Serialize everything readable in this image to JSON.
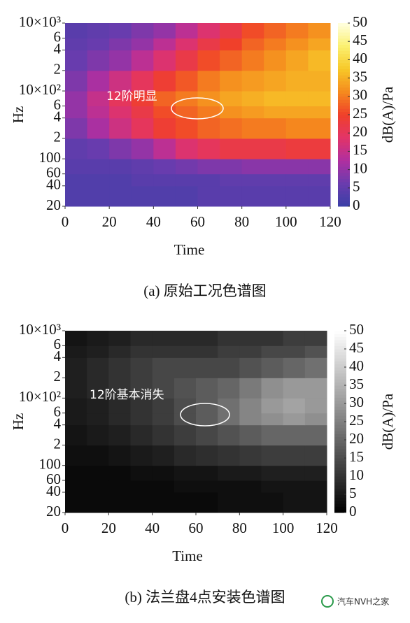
{
  "chart_data": [
    {
      "type": "heatmap",
      "caption": "(a) 原始工况色谱图",
      "annotation": "12阶明显",
      "xlabel": "Time",
      "ylabel": "Hz",
      "colorbar_label": "dB(A)/Pa",
      "xlim": [
        0,
        120
      ],
      "xticks": [
        0,
        20,
        40,
        60,
        80,
        100,
        120
      ],
      "ylim": [
        20,
        10000
      ],
      "y_log": true,
      "yticks": [
        20,
        40,
        60,
        100,
        {
          "value": 200,
          "label": "2"
        },
        {
          "value": 400,
          "label": "4"
        },
        {
          "value": 600,
          "label": "6"
        },
        {
          "value": 1000,
          "label": "10×10²"
        },
        {
          "value": 2000,
          "label": "2"
        },
        {
          "value": 4000,
          "label": "4"
        },
        {
          "value": 6000,
          "label": "6"
        },
        {
          "value": 10000,
          "label": "10×10³"
        }
      ],
      "zlim": [
        0,
        50
      ],
      "zticks": [
        0,
        5,
        10,
        15,
        20,
        25,
        30,
        35,
        40,
        45,
        50
      ],
      "colormap": [
        "#3a3fa6",
        "#6a3cae",
        "#b02fa0",
        "#e23468",
        "#f0402a",
        "#f58a1e",
        "#f7c828",
        "#fbf070",
        "#ffffe0"
      ],
      "x_bins": [
        0,
        10,
        20,
        30,
        40,
        50,
        60,
        70,
        80,
        90,
        100,
        110,
        120
      ],
      "y_bins": [
        20,
        40,
        60,
        100,
        200,
        400,
        600,
        1000,
        2000,
        4000,
        6000,
        10000
      ],
      "z": [
        [
          3,
          3,
          3,
          3,
          3,
          3,
          4,
          4,
          4,
          4,
          4,
          4
        ],
        [
          3,
          3,
          3,
          4,
          4,
          4,
          4,
          5,
          5,
          5,
          5,
          5
        ],
        [
          4,
          4,
          4,
          5,
          6,
          7,
          8,
          8,
          9,
          9,
          9,
          9
        ],
        [
          5,
          6,
          8,
          10,
          14,
          18,
          20,
          22,
          22,
          22,
          23,
          23
        ],
        [
          8,
          12,
          16,
          20,
          24,
          26,
          28,
          29,
          30,
          30,
          31,
          31
        ],
        [
          10,
          14,
          18,
          22,
          26,
          28,
          30,
          32,
          33,
          34,
          34,
          34
        ],
        [
          10,
          15,
          20,
          24,
          28,
          30,
          32,
          34,
          35,
          36,
          36,
          36
        ],
        [
          8,
          12,
          16,
          20,
          24,
          27,
          30,
          32,
          33,
          34,
          35,
          35
        ],
        [
          6,
          8,
          10,
          14,
          18,
          22,
          26,
          28,
          30,
          32,
          34,
          36
        ],
        [
          5,
          6,
          8,
          10,
          14,
          18,
          22,
          25,
          28,
          30,
          32,
          34
        ],
        [
          4,
          5,
          6,
          8,
          10,
          14,
          18,
          22,
          26,
          28,
          30,
          32
        ]
      ]
    },
    {
      "type": "heatmap",
      "caption": "(b) 法兰盘4点安装色谱图",
      "annotation": "12阶基本消失",
      "xlabel": "Time",
      "ylabel": "Hz",
      "colorbar_label": "dB(A)/Pa",
      "xlim": [
        0,
        120
      ],
      "xticks": [
        0,
        20,
        40,
        60,
        80,
        100,
        120
      ],
      "ylim": [
        20,
        10000
      ],
      "y_log": true,
      "yticks": [
        20,
        40,
        60,
        100,
        {
          "value": 200,
          "label": "2"
        },
        {
          "value": 400,
          "label": "4"
        },
        {
          "value": 600,
          "label": "6"
        },
        {
          "value": 1000,
          "label": "10×10²"
        },
        {
          "value": 2000,
          "label": "2"
        },
        {
          "value": 4000,
          "label": "4"
        },
        {
          "value": 6000,
          "label": "6"
        },
        {
          "value": 10000,
          "label": "10×10³"
        }
      ],
      "zlim": [
        0,
        50
      ],
      "zticks": [
        0,
        5,
        10,
        15,
        20,
        25,
        30,
        35,
        40,
        45,
        50
      ],
      "colormap": [
        "#000000",
        "#ffffff"
      ],
      "x_bins": [
        0,
        10,
        20,
        30,
        40,
        50,
        60,
        70,
        80,
        90,
        100,
        110,
        120
      ],
      "y_bins": [
        20,
        40,
        60,
        100,
        200,
        400,
        600,
        1000,
        2000,
        4000,
        6000,
        10000
      ],
      "z": [
        [
          2,
          2,
          2,
          2,
          2,
          2,
          2,
          3,
          3,
          3,
          4,
          4
        ],
        [
          2,
          2,
          2,
          2,
          2,
          3,
          3,
          3,
          3,
          4,
          4,
          4
        ],
        [
          2,
          2,
          2,
          3,
          3,
          4,
          4,
          5,
          5,
          6,
          6,
          6
        ],
        [
          3,
          3,
          4,
          5,
          6,
          8,
          9,
          10,
          11,
          12,
          12,
          12
        ],
        [
          4,
          5,
          6,
          8,
          10,
          12,
          14,
          16,
          18,
          20,
          20,
          20
        ],
        [
          5,
          6,
          8,
          10,
          12,
          15,
          18,
          22,
          26,
          28,
          30,
          28
        ],
        [
          5,
          6,
          8,
          10,
          12,
          15,
          18,
          22,
          26,
          30,
          32,
          30
        ],
        [
          6,
          8,
          10,
          12,
          14,
          16,
          18,
          20,
          24,
          28,
          30,
          30
        ],
        [
          6,
          8,
          10,
          12,
          14,
          14,
          14,
          14,
          16,
          18,
          20,
          22
        ],
        [
          5,
          6,
          8,
          10,
          10,
          10,
          10,
          12,
          12,
          14,
          14,
          16
        ],
        [
          4,
          5,
          6,
          8,
          8,
          8,
          8,
          10,
          10,
          10,
          12,
          12
        ]
      ]
    }
  ],
  "watermark": "汽车NVH之家"
}
